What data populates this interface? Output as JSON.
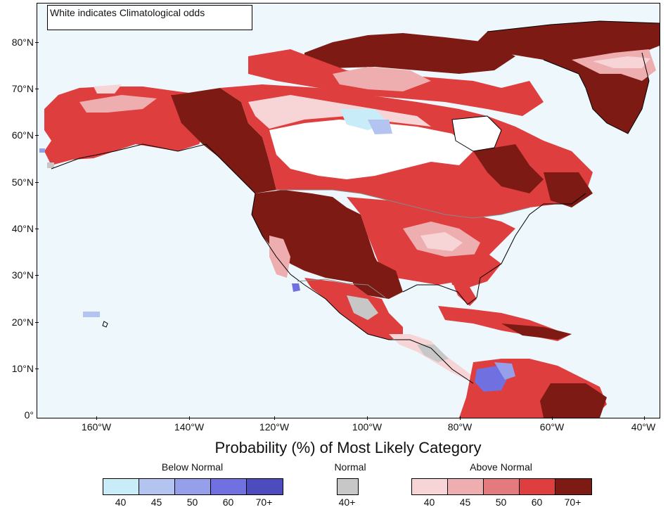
{
  "map": {
    "note": "White indicates Climatological odds",
    "lat_labels": [
      "80°N",
      "70°N",
      "60°N",
      "50°N",
      "40°N",
      "30°N",
      "20°N",
      "10°N",
      "0°"
    ],
    "lon_labels": [
      "160°W",
      "140°W",
      "120°W",
      "100°W",
      "80°W",
      "60°W",
      "40°W"
    ],
    "ocean_color": "#eef8fc",
    "colors": {
      "above_40": "#f7d4d6",
      "above_45": "#eeaeb0",
      "above_50": "#e37a7e",
      "above_60": "#de3e3e",
      "above_70": "#7e1a14",
      "below_40": "#c8ecf8",
      "below_45": "#b4c4f0",
      "below_50": "#96a0ea",
      "below_60": "#7070e0",
      "below_70": "#4c4cbf",
      "normal": "#c7c7c7"
    }
  },
  "legend": {
    "title": "Probability (%) of Most Likely Category",
    "below": {
      "title": "Below Normal",
      "labels": [
        "40",
        "45",
        "50",
        "60",
        "70+"
      ],
      "colors": [
        "#c8ecf8",
        "#b4c4f0",
        "#96a0ea",
        "#7070e0",
        "#4c4cbf"
      ]
    },
    "normal": {
      "title": "Normal",
      "labels": [
        "40+"
      ],
      "colors": [
        "#c7c7c7"
      ]
    },
    "above": {
      "title": "Above Normal",
      "labels": [
        "40",
        "45",
        "50",
        "60",
        "70+"
      ],
      "colors": [
        "#f7d4d6",
        "#eeaeb0",
        "#e37a7e",
        "#de3e3e",
        "#7e1a14"
      ]
    }
  }
}
